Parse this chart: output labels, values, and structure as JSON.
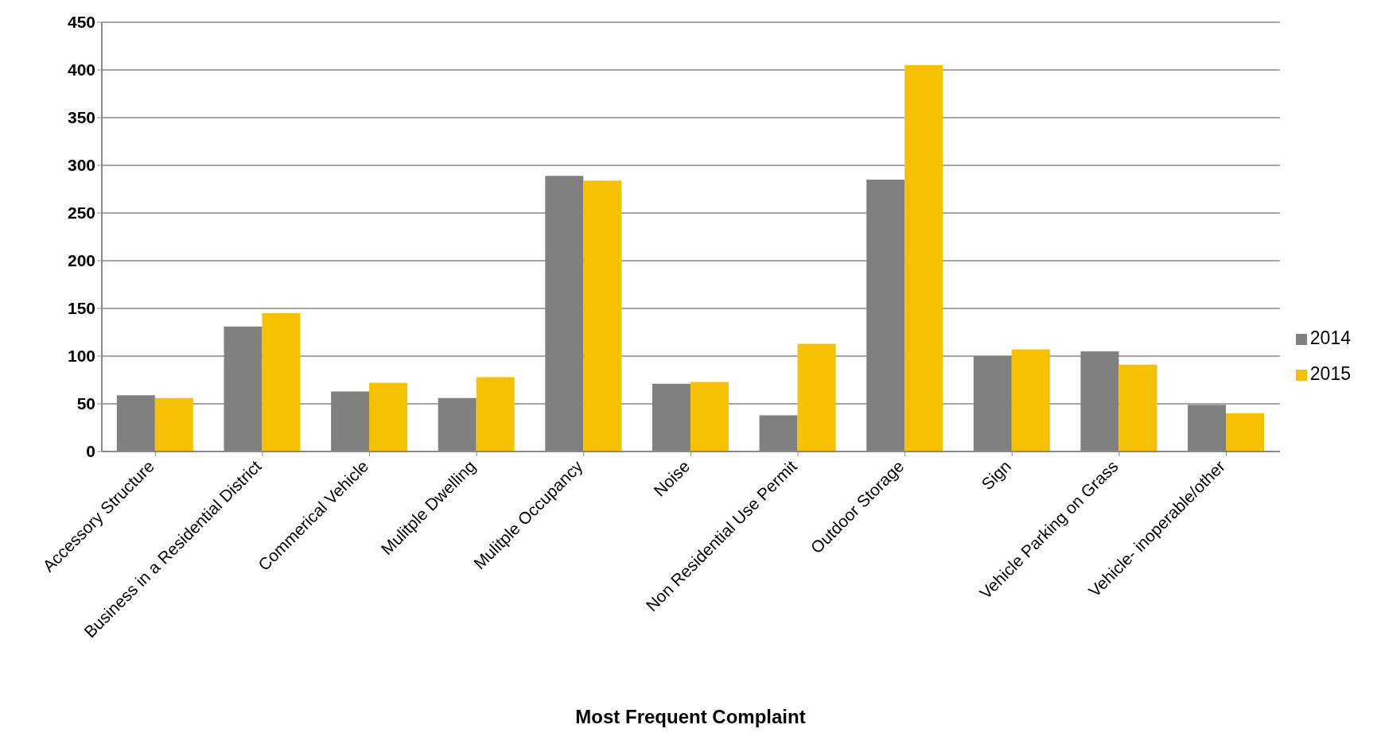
{
  "chart_data": {
    "type": "bar",
    "xlabel": "Most Frequent Complaint",
    "categories": [
      "Accessory Structure",
      "Business in a Residential District",
      "Commerical Vehicle",
      "Mulitple Dwelling",
      "Mulitple Occupancy",
      "Noise",
      "Non Residential Use Permit",
      "Outdoor Storage",
      "Sign",
      "Vehicle Parking on Grass",
      "Vehicle- inoperable/other"
    ],
    "series": [
      {
        "name": "2014",
        "color": "#808080",
        "values": [
          59,
          131,
          63,
          56,
          289,
          71,
          38,
          285,
          100,
          105,
          49
        ]
      },
      {
        "name": "2015",
        "color": "#f5c100",
        "values": [
          56,
          145,
          72,
          78,
          284,
          73,
          113,
          405,
          107,
          91,
          40
        ]
      }
    ],
    "ylim": [
      0,
      450
    ],
    "yticks": [
      0,
      50,
      100,
      150,
      200,
      250,
      300,
      350,
      400,
      450
    ],
    "grid": "y",
    "legend": "right"
  }
}
